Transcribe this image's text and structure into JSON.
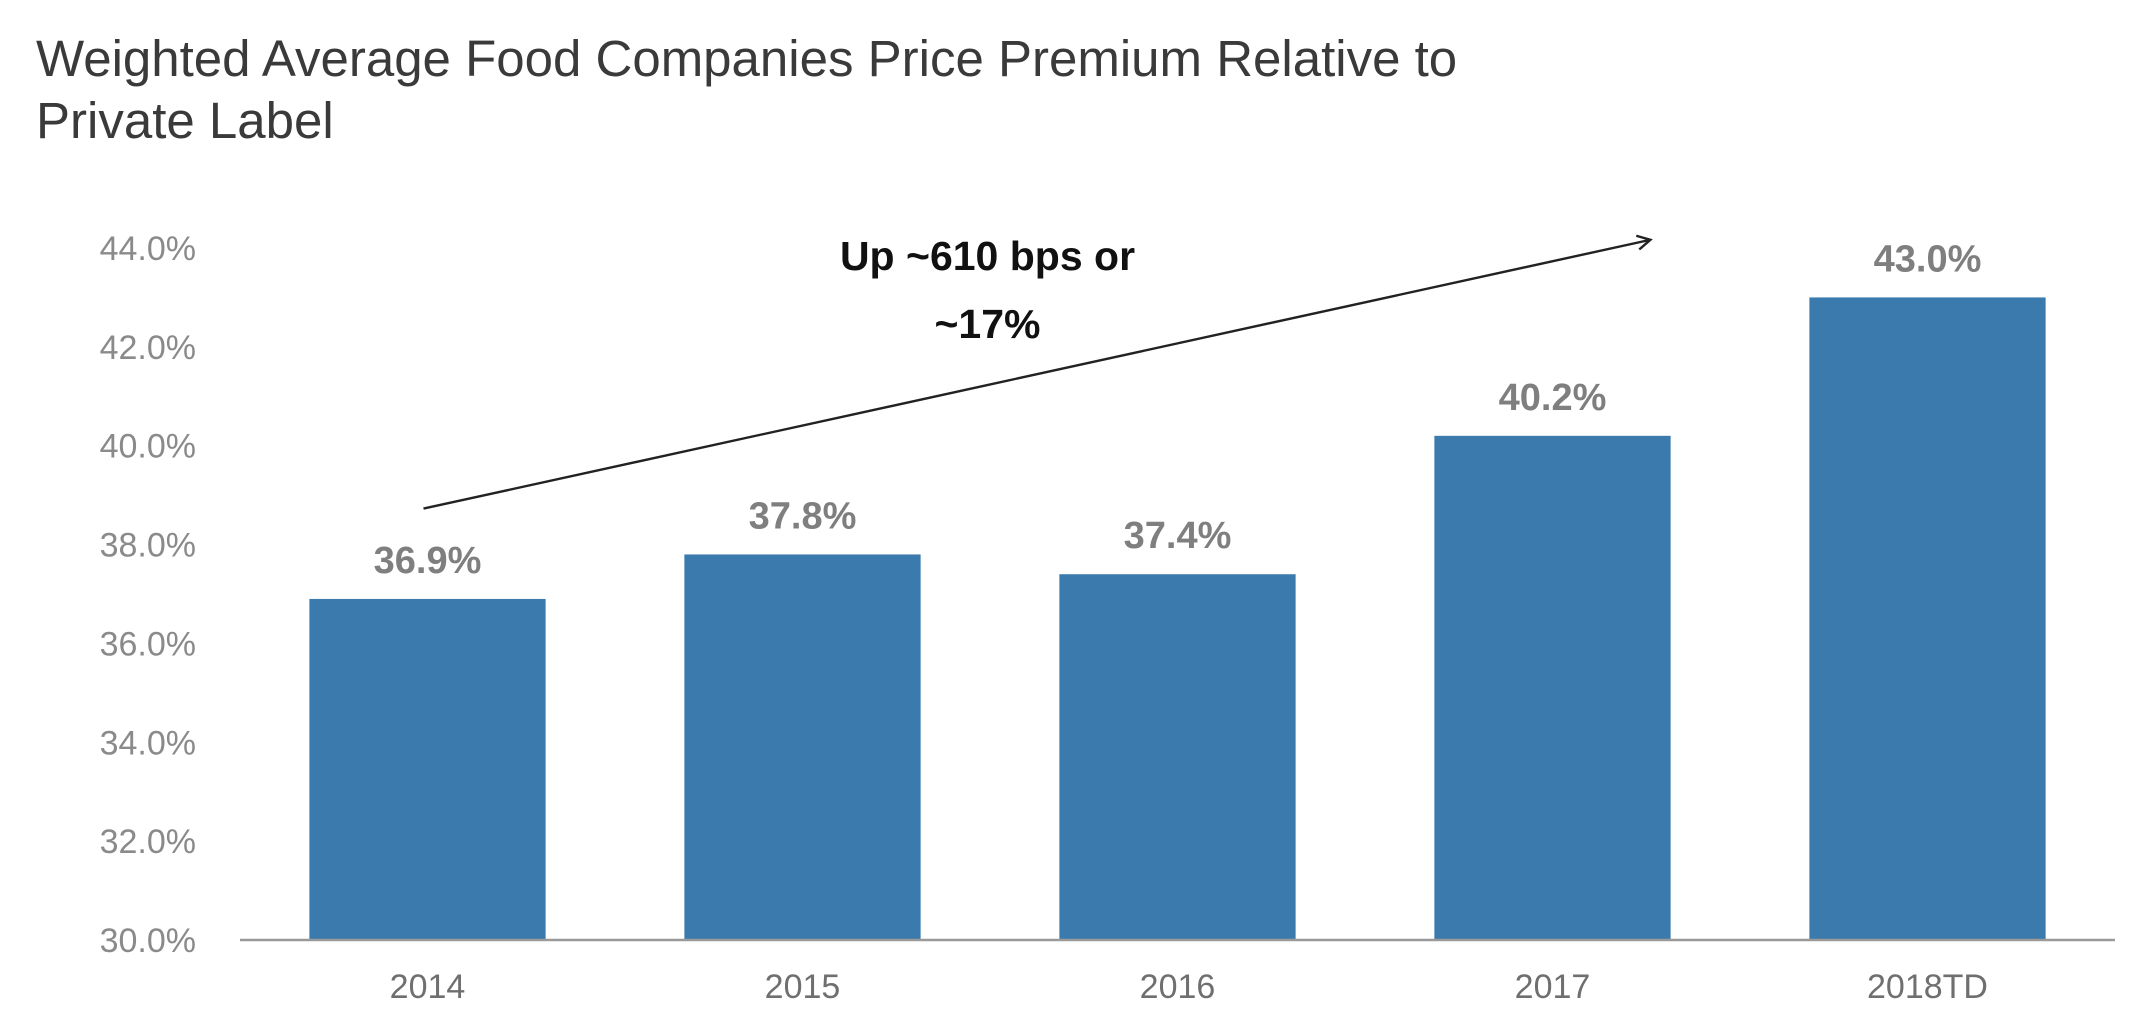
{
  "title_lines": [
    "Weighted Average Food Companies Price Premium Relative to",
    "Private Label"
  ],
  "colors": {
    "bar": "#3a7aac",
    "axis": "#9a9a9a",
    "arrow": "#222222"
  },
  "chart_data": {
    "type": "bar",
    "title": "Weighted Average Food Companies Price Premium Relative to Private Label",
    "xlabel": "",
    "ylabel": "",
    "categories": [
      "2014",
      "2015",
      "2016",
      "2017",
      "2018TD"
    ],
    "values": [
      36.9,
      37.8,
      37.4,
      40.2,
      43.0
    ],
    "data_labels": [
      "36.9%",
      "37.8%",
      "37.4%",
      "40.2%",
      "43.0%"
    ],
    "ylim": [
      30.0,
      44.0
    ],
    "yticks": [
      30.0,
      32.0,
      34.0,
      36.0,
      38.0,
      40.0,
      42.0,
      44.0
    ],
    "ytick_labels": [
      "30.0%",
      "32.0%",
      "34.0%",
      "36.0%",
      "38.0%",
      "40.0%",
      "42.0%",
      "44.0%"
    ],
    "grid": false,
    "legend": "none",
    "annotation": {
      "lines": [
        "Up ~610 bps or",
        "~17%"
      ],
      "arrow_from": {
        "x": "2014",
        "y": 38.0
      },
      "arrow_to": {
        "x": "2018TD",
        "y": 44.0
      }
    }
  }
}
